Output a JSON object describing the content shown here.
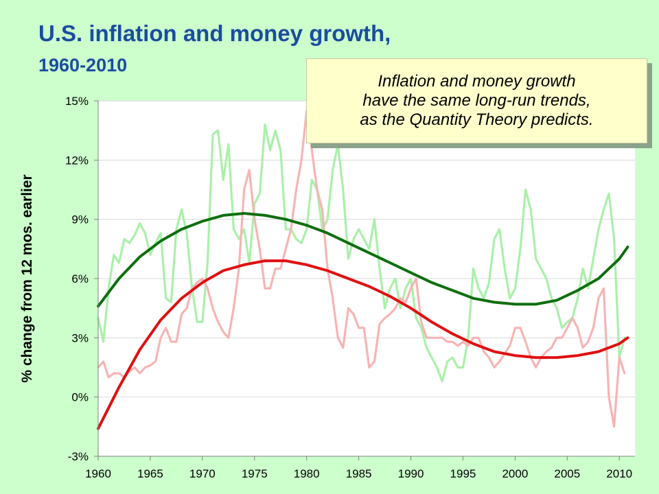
{
  "title": "U.S. inflation and money growth,",
  "subtitle": "1960-2010",
  "callout": "Inflation and money growth\nhave the same long-run trends,\nas the Quantity Theory predicts.",
  "chart_data": {
    "type": "line",
    "title": "U.S. inflation and money growth, 1960-2010",
    "xlabel": "",
    "ylabel": "% change from 12 mos. earlier",
    "xlim": [
      1960,
      2011.5
    ],
    "ylim": [
      -3,
      15
    ],
    "x_ticks": [
      1960,
      1965,
      1970,
      1975,
      1980,
      1985,
      1990,
      1995,
      2000,
      2005,
      2010
    ],
    "x_tick_labels": [
      "1960",
      "1965",
      "1970",
      "1975",
      "1980",
      "1985",
      "1990",
      "1995",
      "2000",
      "2005",
      "2010"
    ],
    "y_ticks": [
      -3,
      0,
      3,
      6,
      9,
      12,
      15
    ],
    "y_tick_labels": [
      "-3%",
      "0%",
      "3%",
      "6%",
      "9%",
      "12%",
      "15%"
    ],
    "grid": "horizontal",
    "legend": "none",
    "colors": {
      "money_growth_raw": "#aaf0aa",
      "inflation_raw": "#f7b4b4",
      "money_growth_trend": "#0e6e0e",
      "inflation_trend": "#e01010",
      "grid": "#d9d9d9",
      "plot_background": "#ffffff"
    },
    "series": [
      {
        "name": "",
        "role": "money_growth_raw",
        "x": [
          1960.0,
          1960.5,
          1961.0,
          1961.5,
          1962.0,
          1962.5,
          1963.0,
          1963.5,
          1964.0,
          1964.5,
          1965.0,
          1965.5,
          1966.0,
          1966.5,
          1967.0,
          1967.5,
          1968.0,
          1968.5,
          1969.0,
          1969.5,
          1970.0,
          1970.5,
          1971.0,
          1971.5,
          1972.0,
          1972.5,
          1973.0,
          1973.5,
          1974.0,
          1974.5,
          1975.0,
          1975.5,
          1976.0,
          1976.5,
          1977.0,
          1977.5,
          1978.0,
          1978.5,
          1979.0,
          1979.5,
          1980.0,
          1980.5,
          1981.0,
          1981.5,
          1982.0,
          1982.5,
          1983.0,
          1983.5,
          1984.0,
          1984.5,
          1985.0,
          1985.5,
          1986.0,
          1986.5,
          1987.0,
          1987.5,
          1988.0,
          1988.5,
          1989.0,
          1989.5,
          1990.0,
          1990.5,
          1991.0,
          1991.5,
          1992.0,
          1992.5,
          1993.0,
          1993.5,
          1994.0,
          1994.5,
          1995.0,
          1995.5,
          1996.0,
          1996.5,
          1997.0,
          1997.5,
          1998.0,
          1998.5,
          1999.0,
          1999.5,
          2000.0,
          2000.5,
          2001.0,
          2001.5,
          2002.0,
          2002.5,
          2003.0,
          2003.5,
          2004.0,
          2004.5,
          2005.0,
          2005.5,
          2006.0,
          2006.5,
          2007.0,
          2007.5,
          2008.0,
          2008.5,
          2009.0,
          2009.5,
          2010.0,
          2010.5
        ],
        "values": [
          4.0,
          2.8,
          5.5,
          7.2,
          6.8,
          8.0,
          7.8,
          8.2,
          8.8,
          8.3,
          7.2,
          7.8,
          8.3,
          5.0,
          4.8,
          8.5,
          9.5,
          8.3,
          5.5,
          3.8,
          3.8,
          6.8,
          13.3,
          13.5,
          11.0,
          12.8,
          8.5,
          8.0,
          8.5,
          6.8,
          9.8,
          10.3,
          13.8,
          12.5,
          13.5,
          12.5,
          8.5,
          8.5,
          8.0,
          7.8,
          8.5,
          11.0,
          10.5,
          8.5,
          9.0,
          11.5,
          12.8,
          10.5,
          7.0,
          8.0,
          8.5,
          8.0,
          7.5,
          9.0,
          6.5,
          4.5,
          5.5,
          6.0,
          4.5,
          5.5,
          6.0,
          4.0,
          3.5,
          2.5,
          2.0,
          1.5,
          0.8,
          1.8,
          2.0,
          1.5,
          1.5,
          3.0,
          6.5,
          5.5,
          5.0,
          5.8,
          8.0,
          8.5,
          6.5,
          5.0,
          5.5,
          7.5,
          10.5,
          9.5,
          7.0,
          6.5,
          6.0,
          5.0,
          4.5,
          3.5,
          3.8,
          4.0,
          5.0,
          6.5,
          5.5,
          7.0,
          8.5,
          9.5,
          10.3,
          8.0,
          2.0,
          3.0
        ]
      },
      {
        "name": "",
        "role": "inflation_raw",
        "x": [
          1960.0,
          1960.5,
          1961.0,
          1961.5,
          1962.0,
          1962.5,
          1963.0,
          1963.5,
          1964.0,
          1964.5,
          1965.0,
          1965.5,
          1966.0,
          1966.5,
          1967.0,
          1967.5,
          1968.0,
          1968.5,
          1969.0,
          1969.5,
          1970.0,
          1970.5,
          1971.0,
          1971.5,
          1972.0,
          1972.5,
          1973.0,
          1973.5,
          1974.0,
          1974.5,
          1975.0,
          1975.5,
          1976.0,
          1976.5,
          1977.0,
          1977.5,
          1978.0,
          1978.5,
          1979.0,
          1979.5,
          1980.0,
          1980.5,
          1981.0,
          1981.5,
          1982.0,
          1982.5,
          1983.0,
          1983.5,
          1984.0,
          1984.5,
          1985.0,
          1985.5,
          1986.0,
          1986.5,
          1987.0,
          1987.5,
          1988.0,
          1988.5,
          1989.0,
          1989.5,
          1990.0,
          1990.5,
          1991.0,
          1991.5,
          1992.0,
          1992.5,
          1993.0,
          1993.5,
          1994.0,
          1994.5,
          1995.0,
          1995.5,
          1996.0,
          1996.5,
          1997.0,
          1997.5,
          1998.0,
          1998.5,
          1999.0,
          1999.5,
          2000.0,
          2000.5,
          2001.0,
          2001.5,
          2002.0,
          2002.5,
          2003.0,
          2003.5,
          2004.0,
          2004.5,
          2005.0,
          2005.5,
          2006.0,
          2006.5,
          2007.0,
          2007.5,
          2008.0,
          2008.5,
          2009.0,
          2009.5,
          2010.0,
          2010.5
        ],
        "values": [
          1.5,
          1.8,
          1.0,
          1.2,
          1.2,
          1.0,
          1.3,
          1.5,
          1.2,
          1.5,
          1.6,
          1.8,
          3.0,
          3.5,
          2.8,
          2.8,
          4.2,
          4.5,
          5.5,
          5.8,
          6.0,
          5.5,
          4.5,
          3.8,
          3.3,
          3.0,
          4.5,
          6.5,
          10.5,
          11.5,
          9.0,
          7.5,
          5.5,
          5.5,
          6.5,
          6.5,
          7.5,
          8.5,
          10.5,
          12.0,
          14.5,
          12.5,
          10.5,
          9.5,
          6.5,
          5.0,
          3.0,
          2.5,
          4.5,
          4.2,
          3.5,
          3.5,
          1.5,
          1.8,
          3.7,
          4.0,
          4.2,
          4.5,
          5.0,
          4.8,
          5.5,
          6.0,
          3.8,
          3.0,
          3.0,
          3.0,
          3.0,
          2.8,
          2.8,
          2.6,
          2.8,
          2.6,
          3.0,
          3.0,
          2.3,
          2.0,
          1.5,
          1.8,
          2.2,
          2.6,
          3.5,
          3.5,
          2.8,
          2.0,
          1.5,
          2.0,
          2.3,
          2.5,
          3.0,
          3.0,
          3.5,
          4.0,
          3.5,
          2.5,
          2.8,
          3.5,
          5.0,
          5.5,
          0.0,
          -1.5,
          2.0,
          1.2
        ]
      },
      {
        "name": "",
        "role": "money_growth_trend",
        "x": [
          1960,
          1962,
          1964,
          1966,
          1968,
          1970,
          1972,
          1974,
          1976,
          1978,
          1980,
          1982,
          1984,
          1986,
          1988,
          1990,
          1992,
          1994,
          1996,
          1998,
          2000,
          2002,
          2004,
          2006,
          2008,
          2010,
          2010.8
        ],
        "values": [
          4.6,
          6.0,
          7.1,
          7.9,
          8.5,
          8.9,
          9.2,
          9.3,
          9.2,
          9.0,
          8.7,
          8.3,
          7.8,
          7.3,
          6.8,
          6.3,
          5.8,
          5.4,
          5.0,
          4.8,
          4.7,
          4.7,
          4.9,
          5.4,
          6.0,
          7.0,
          7.6
        ]
      },
      {
        "name": "",
        "role": "inflation_trend",
        "x": [
          1960,
          1962,
          1964,
          1966,
          1968,
          1970,
          1972,
          1974,
          1976,
          1978,
          1980,
          1982,
          1984,
          1986,
          1988,
          1990,
          1992,
          1994,
          1996,
          1998,
          2000,
          2002,
          2004,
          2006,
          2008,
          2010,
          2010.8
        ],
        "values": [
          -1.6,
          0.5,
          2.4,
          3.9,
          5.0,
          5.8,
          6.4,
          6.7,
          6.9,
          6.9,
          6.7,
          6.4,
          6.0,
          5.6,
          5.1,
          4.5,
          3.8,
          3.2,
          2.7,
          2.3,
          2.1,
          2.0,
          2.0,
          2.1,
          2.3,
          2.7,
          3.0
        ]
      }
    ]
  }
}
